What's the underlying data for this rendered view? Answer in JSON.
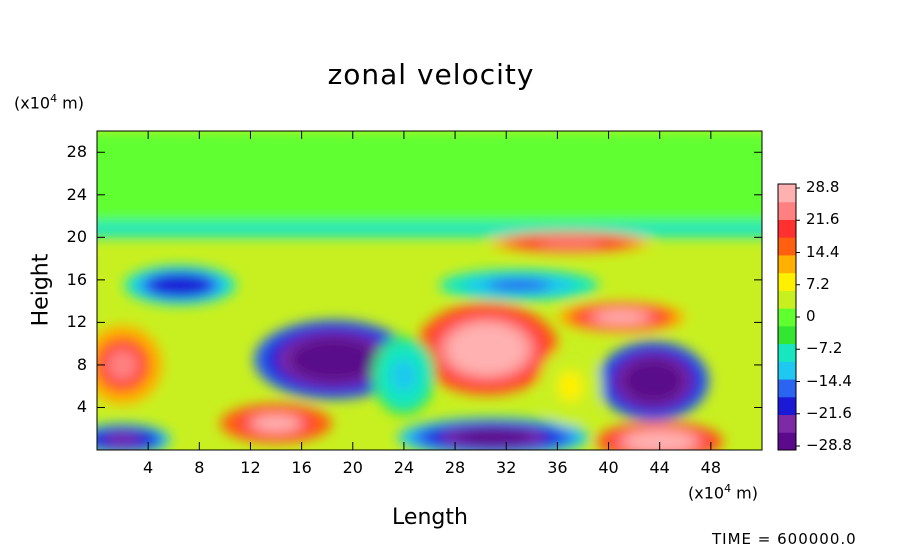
{
  "chart_data": {
    "type": "heatmap",
    "title": "zonal velocity",
    "xlabel": "Length",
    "ylabel": "Height",
    "x_unit": "(x10^4 m)",
    "y_unit": "(x10^4 m)",
    "xlim": [
      0,
      52
    ],
    "ylim": [
      0,
      30
    ],
    "x_ticks": [
      4,
      8,
      12,
      16,
      20,
      24,
      28,
      32,
      36,
      40,
      44,
      48
    ],
    "y_ticks": [
      4,
      8,
      12,
      16,
      20,
      24,
      28
    ],
    "colorbar": {
      "labels": [
        "28.8",
        "21.6",
        "14.4",
        "7.2",
        "0",
        "−7.2",
        "−14.4",
        "−21.6",
        "−28.8"
      ],
      "range": [
        -28.8,
        28.8
      ],
      "colors": [
        "#5a0a8a",
        "#7d2aa6",
        "#1a1ad6",
        "#2a64f0",
        "#1ec8f0",
        "#18e6c0",
        "#32e632",
        "#60ff30",
        "#c8f020",
        "#fff000",
        "#ffb000",
        "#ff6010",
        "#ff3030",
        "#ff8080",
        "#ffb0b0"
      ]
    },
    "features": [
      {
        "kind": "layer",
        "y": [
          21.5,
          30
        ],
        "value": 1
      },
      {
        "kind": "layer",
        "y": [
          20,
          21.5
        ],
        "value": -6
      },
      {
        "kind": "blob",
        "x": 18.5,
        "y": 8.5,
        "rx": 5,
        "ry": 3,
        "value": -32
      },
      {
        "kind": "blob",
        "x": 30.5,
        "y": 9.5,
        "rx": 4.5,
        "ry": 3.5,
        "value": 32
      },
      {
        "kind": "blob",
        "x": 43.5,
        "y": 6.5,
        "rx": 3.5,
        "ry": 3,
        "value": -30
      },
      {
        "kind": "blob",
        "x": 14,
        "y": 2.5,
        "rx": 3.5,
        "ry": 1.5,
        "value": 28
      },
      {
        "kind": "blob",
        "x": 44,
        "y": 0.8,
        "rx": 4,
        "ry": 1.5,
        "value": 30
      },
      {
        "kind": "blob",
        "x": 31,
        "y": 1.2,
        "rx": 6,
        "ry": 1.5,
        "value": -26
      },
      {
        "kind": "blob",
        "x": 2,
        "y": 8,
        "rx": 2.5,
        "ry": 3,
        "value": 22
      },
      {
        "kind": "blob",
        "x": 41,
        "y": 12.5,
        "rx": 4,
        "ry": 1.2,
        "value": 26
      },
      {
        "kind": "blob",
        "x": 37,
        "y": 19.5,
        "rx": 5,
        "ry": 0.8,
        "value": 24
      },
      {
        "kind": "blob",
        "x": 6.5,
        "y": 15.5,
        "rx": 3.5,
        "ry": 1.5,
        "value": -20
      },
      {
        "kind": "blob",
        "x": 33,
        "y": 15.5,
        "rx": 5,
        "ry": 1.2,
        "value": -14
      },
      {
        "kind": "blob",
        "x": 2,
        "y": 1,
        "rx": 3,
        "ry": 1.2,
        "value": -24
      },
      {
        "kind": "blob",
        "x": 24,
        "y": 7,
        "rx": 2,
        "ry": 3,
        "value": -10
      },
      {
        "kind": "blob",
        "x": 37,
        "y": 6,
        "rx": 2,
        "ry": 3,
        "value": 6
      }
    ]
  },
  "time_label": "TIME =  600000.0"
}
